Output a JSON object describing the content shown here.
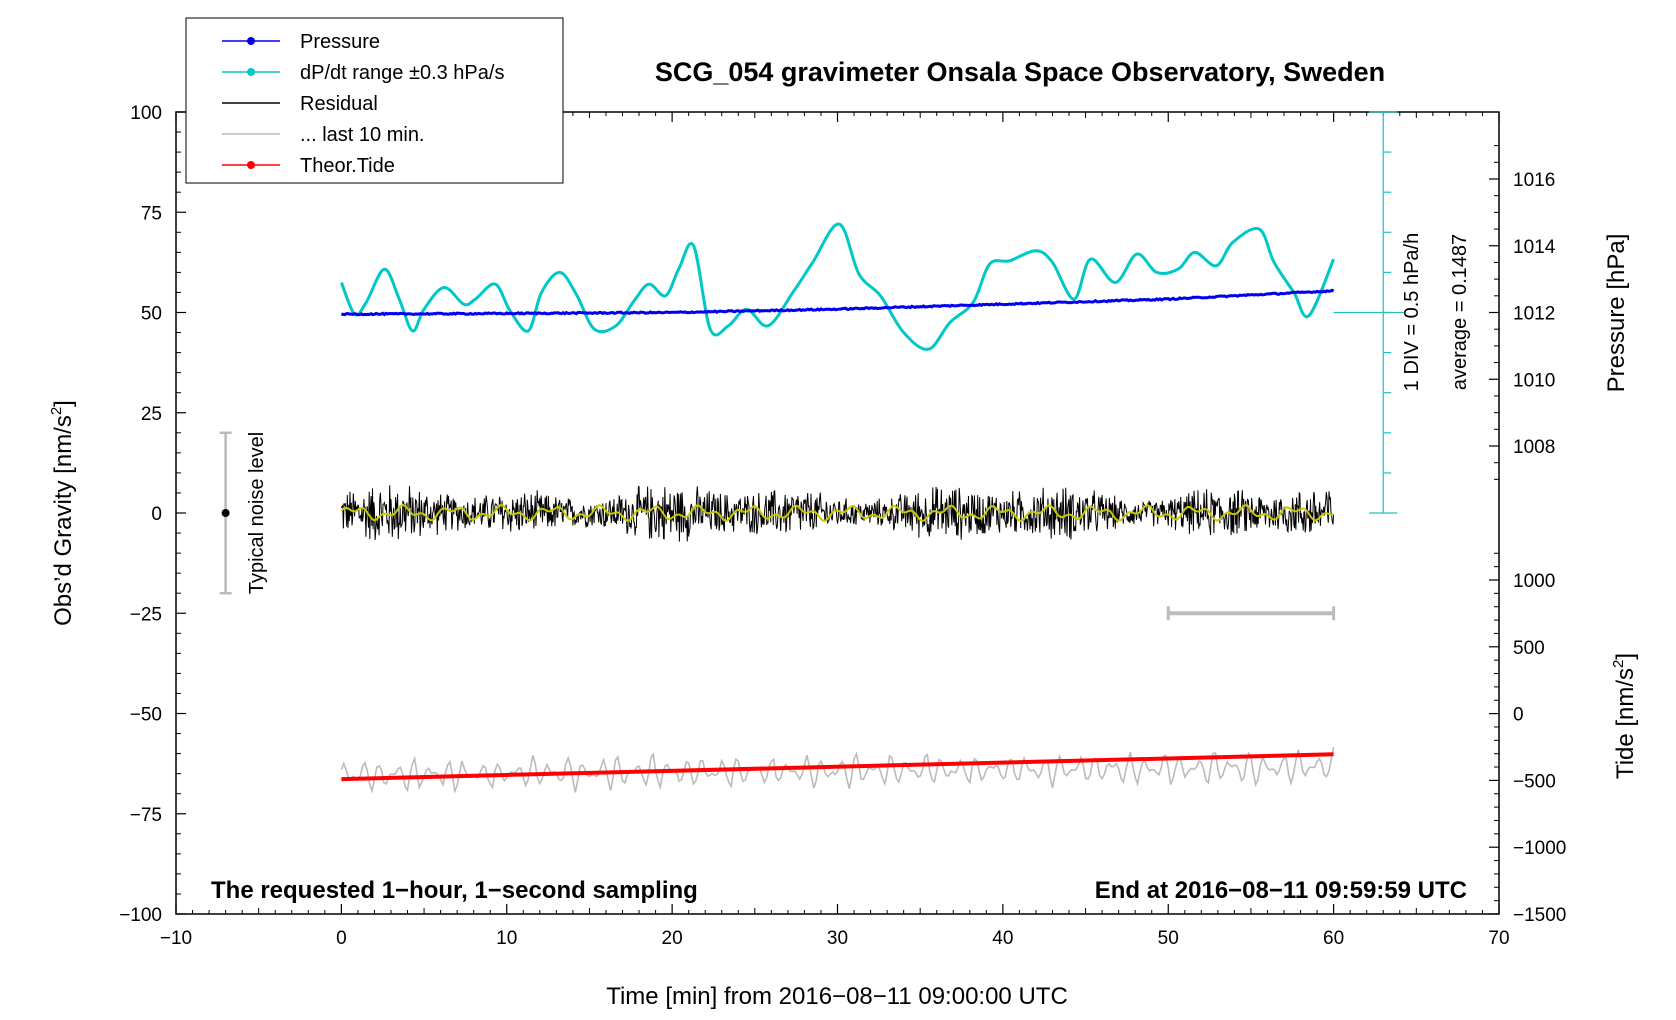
{
  "chart_data": {
    "type": "line",
    "title": "SCG_054 gravimeter Onsala Space Observatory, Sweden",
    "xlabel": "Time [min] from 2016−08−11 09:00:00 UTC",
    "xlim": [
      -10,
      70
    ],
    "x_ticks": [
      -10,
      0,
      10,
      20,
      30,
      40,
      50,
      60,
      70
    ],
    "x_tick_labels": [
      "−10",
      "0",
      "10",
      "20",
      "30",
      "40",
      "50",
      "60",
      "70"
    ],
    "y_left": {
      "label": "Obs’d Gravity [nm/s²]",
      "label_main": "Obs’d Gravity [nm/s",
      "label_sup": "2",
      "label_end": "]",
      "lim": [
        -100,
        100
      ],
      "ticks": [
        -100,
        -75,
        -50,
        -25,
        0,
        25,
        50,
        75,
        100
      ],
      "tick_labels": [
        "−100",
        "−75",
        "−50",
        "−25",
        "0",
        "25",
        "50",
        "75",
        "100"
      ]
    },
    "y_right_pressure": {
      "label": "Pressure [hPa]",
      "ticks": [
        1008,
        1010,
        1012,
        1014,
        1016
      ],
      "tick_labels": [
        "1008",
        "1010",
        "1012",
        "1014",
        "1016"
      ]
    },
    "y_right_tide": {
      "label": "Tide [nm/s²]",
      "label_main": "Tide [nm/s",
      "label_sup": "2",
      "label_end": "]",
      "ticks": [
        -1500,
        -1000,
        -500,
        0,
        500,
        1000
      ],
      "tick_labels": [
        "−1500",
        "−1000",
        "−500",
        "0",
        "500",
        "1000"
      ]
    },
    "legend": {
      "placement": "top-left",
      "entries": [
        {
          "label": "Pressure",
          "color": "#0000ee",
          "marker": true
        },
        {
          "label": "dP/dt range ±0.3 hPa/s",
          "color": "#00c8c8",
          "marker": true
        },
        {
          "label": "Residual",
          "color": "#000000",
          "marker": false
        },
        {
          "label": "... last 10 min.",
          "color": "#bbbbbb",
          "marker": false
        },
        {
          "label": "Theor.Tide",
          "color": "#ff0000",
          "marker": true
        }
      ]
    },
    "series": [
      {
        "name": "Pressure",
        "color": "#0000ee",
        "axis": "pressure",
        "x": [
          0,
          10,
          20,
          30,
          40,
          50,
          60
        ],
        "y": [
          1011.95,
          1011.97,
          1012.0,
          1012.1,
          1012.25,
          1012.4,
          1012.65
        ]
      },
      {
        "name": "dP/dt range ±0.3 hPa/s",
        "color": "#00c8c8",
        "axis": "pressure",
        "x": [
          0,
          0.8,
          1.5,
          2.6,
          3.5,
          4.3,
          5.0,
          6.2,
          7.4,
          8.1,
          9.3,
          10.2,
          11.3,
          12.1,
          13.2,
          14.2,
          15.3,
          16.6,
          17.7,
          18.6,
          19.6,
          20.4,
          21.3,
          22.3,
          23.4,
          24.5,
          25.8,
          27.3,
          28.5,
          30.1,
          31.3,
          32.6,
          34.0,
          35.5,
          36.8,
          38.2,
          39.2,
          40.4,
          42.0,
          43.0,
          44.3,
          45.3,
          46.8,
          48.1,
          49.3,
          50.6,
          51.6,
          52.9,
          53.9,
          55.5,
          56.4,
          57.6,
          58.5,
          60.0
        ],
        "y": [
          1012.9,
          1011.95,
          1012.3,
          1013.3,
          1012.4,
          1011.45,
          1012.1,
          1012.75,
          1012.25,
          1012.4,
          1012.85,
          1012.05,
          1011.45,
          1012.6,
          1013.2,
          1012.55,
          1011.5,
          1011.6,
          1012.35,
          1012.85,
          1012.5,
          1013.3,
          1014.0,
          1011.5,
          1011.6,
          1012.1,
          1011.6,
          1012.6,
          1013.5,
          1014.65,
          1013.15,
          1012.5,
          1011.4,
          1010.9,
          1011.7,
          1012.3,
          1013.45,
          1013.55,
          1013.85,
          1013.5,
          1012.4,
          1013.6,
          1012.9,
          1013.75,
          1013.2,
          1013.3,
          1013.8,
          1013.4,
          1014.1,
          1014.5,
          1013.5,
          1012.6,
          1011.9,
          1013.6
        ]
      },
      {
        "name": "Residual",
        "color": "#000000",
        "axis": "gravity",
        "x_range": [
          0,
          60
        ],
        "amplitude": [
          3.5,
          10
        ]
      },
      {
        "name": "... last 10 min.",
        "color": "#bbbbbb",
        "axis": "tide",
        "x_range": [
          0,
          60
        ],
        "center": -460,
        "amplitude": 150
      },
      {
        "name": "Theor.Tide",
        "color": "#ff0000",
        "axis": "tide",
        "x": [
          0,
          60
        ],
        "y": [
          -490,
          -305
        ]
      }
    ],
    "smoothed_residual": {
      "color": "#c8c800",
      "axis": "gravity",
      "amplitude": 2
    },
    "dpdt_scale_note": "1 DIV = 0.5 hPa/h",
    "dpdt_average_note": "average = 0.1487",
    "noise_level": {
      "label": "Typical noise level",
      "x": -7,
      "center": 0,
      "range": [
        -20,
        20
      ]
    },
    "last_window_bar": {
      "x_range": [
        50,
        60
      ],
      "y": -25
    },
    "bottom_left_note": "The requested 1−hour, 1−second sampling",
    "bottom_right_note": "End at 2016−08−11 09:59:59 UTC",
    "grid": false
  }
}
